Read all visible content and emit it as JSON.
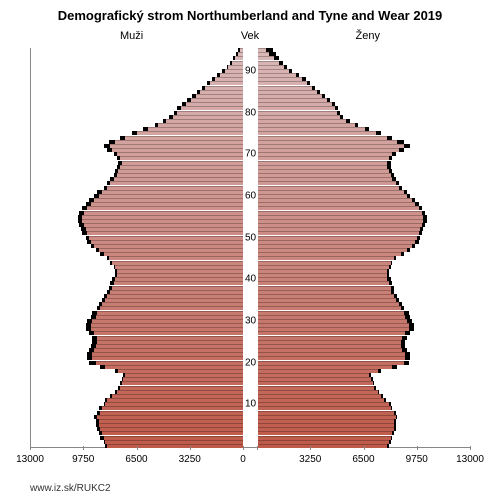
{
  "title": "Demografický strom Northumberland and Tyne and Wear 2019",
  "title_fontsize": 13,
  "labels": {
    "left": "Muži",
    "center": "Vek",
    "right": "Ženy"
  },
  "source": "www.iz.sk/RUKC2",
  "x_axis": {
    "max": 13000,
    "ticks_left": [
      13000,
      9750,
      6500,
      3250,
      0
    ],
    "ticks_right": [
      3250,
      6500,
      9750,
      13000
    ]
  },
  "y_axis": {
    "ticks": [
      10,
      20,
      30,
      40,
      50,
      60,
      70,
      80,
      90
    ],
    "max_age": 95,
    "label_fontsize": 10
  },
  "gradient": {
    "top_color": "#d9b8b8",
    "bottom_color": "#bf5a4a"
  },
  "background_color": "#ffffff",
  "outline_color": "#000000",
  "axis_color": "#888888",
  "bars": {
    "0": {
      "m_main": 8300,
      "m_back": 8400,
      "f_main": 7900,
      "f_back": 8000
    },
    "1": {
      "m_main": 8400,
      "m_back": 8500,
      "f_main": 8000,
      "f_back": 8100
    },
    "2": {
      "m_main": 8500,
      "m_back": 8700,
      "f_main": 8100,
      "f_back": 8200
    },
    "3": {
      "m_main": 8600,
      "m_back": 8800,
      "f_main": 8200,
      "f_back": 8300
    },
    "4": {
      "m_main": 8700,
      "m_back": 8900,
      "f_main": 8300,
      "f_back": 8400
    },
    "5": {
      "m_main": 8800,
      "m_back": 9000,
      "f_main": 8300,
      "f_back": 8400
    },
    "6": {
      "m_main": 8800,
      "m_back": 9000,
      "f_main": 8300,
      "f_back": 8400
    },
    "7": {
      "m_main": 8900,
      "m_back": 9100,
      "f_main": 8400,
      "f_back": 8500
    },
    "8": {
      "m_main": 8700,
      "m_back": 8900,
      "f_main": 8300,
      "f_back": 8400
    },
    "9": {
      "m_main": 8600,
      "m_back": 8800,
      "f_main": 8100,
      "f_back": 8200
    },
    "10": {
      "m_main": 8400,
      "m_back": 8500,
      "f_main": 8000,
      "f_back": 8100
    },
    "11": {
      "m_main": 8300,
      "m_back": 8400,
      "f_main": 7700,
      "f_back": 7800
    },
    "12": {
      "m_main": 8000,
      "m_back": 8100,
      "f_main": 7500,
      "f_back": 7600
    },
    "13": {
      "m_main": 7700,
      "m_back": 7800,
      "f_main": 7300,
      "f_back": 7400
    },
    "14": {
      "m_main": 7500,
      "m_back": 7600,
      "f_main": 7100,
      "f_back": 7200
    },
    "15": {
      "m_main": 7400,
      "m_back": 7500,
      "f_main": 7000,
      "f_back": 7100
    },
    "16": {
      "m_main": 7300,
      "m_back": 7400,
      "f_main": 6900,
      "f_back": 7000
    },
    "17": {
      "m_main": 7200,
      "m_back": 7300,
      "f_main": 6800,
      "f_back": 6900
    },
    "18": {
      "m_main": 7600,
      "m_back": 7800,
      "f_main": 7300,
      "f_back": 7500
    },
    "19": {
      "m_main": 8400,
      "m_back": 8700,
      "f_main": 8200,
      "f_back": 8500
    },
    "20": {
      "m_main": 9000,
      "m_back": 9400,
      "f_main": 8900,
      "f_back": 9200
    },
    "21": {
      "m_main": 9200,
      "m_back": 9500,
      "f_main": 9000,
      "f_back": 9300
    },
    "22": {
      "m_main": 9200,
      "m_back": 9500,
      "f_main": 9000,
      "f_back": 9300
    },
    "23": {
      "m_main": 9100,
      "m_back": 9400,
      "f_main": 8800,
      "f_back": 9100
    },
    "24": {
      "m_main": 9000,
      "m_back": 9300,
      "f_main": 8700,
      "f_back": 9000
    },
    "25": {
      "m_main": 8900,
      "m_back": 9200,
      "f_main": 8700,
      "f_back": 9000
    },
    "26": {
      "m_main": 8900,
      "m_back": 9200,
      "f_main": 8800,
      "f_back": 9100
    },
    "27": {
      "m_main": 9100,
      "m_back": 9400,
      "f_main": 9000,
      "f_back": 9300
    },
    "28": {
      "m_main": 9300,
      "m_back": 9600,
      "f_main": 9200,
      "f_back": 9500
    },
    "29": {
      "m_main": 9300,
      "m_back": 9600,
      "f_main": 9200,
      "f_back": 9500
    },
    "30": {
      "m_main": 9200,
      "m_back": 9500,
      "f_main": 9100,
      "f_back": 9400
    },
    "31": {
      "m_main": 9000,
      "m_back": 9300,
      "f_main": 9000,
      "f_back": 9300
    },
    "32": {
      "m_main": 8900,
      "m_back": 9200,
      "f_main": 8900,
      "f_back": 9200
    },
    "33": {
      "m_main": 8700,
      "m_back": 8900,
      "f_main": 8700,
      "f_back": 8900
    },
    "34": {
      "m_main": 8600,
      "m_back": 8800,
      "f_main": 8600,
      "f_back": 8800
    },
    "35": {
      "m_main": 8400,
      "m_back": 8600,
      "f_main": 8400,
      "f_back": 8600
    },
    "36": {
      "m_main": 8300,
      "m_back": 8500,
      "f_main": 8300,
      "f_back": 8500
    },
    "37": {
      "m_main": 8100,
      "m_back": 8300,
      "f_main": 8100,
      "f_back": 8300
    },
    "38": {
      "m_main": 8000,
      "m_back": 8200,
      "f_main": 8100,
      "f_back": 8300
    },
    "39": {
      "m_main": 7900,
      "m_back": 8100,
      "f_main": 8000,
      "f_back": 8200
    },
    "40": {
      "m_main": 7800,
      "m_back": 8000,
      "f_main": 7900,
      "f_back": 8100
    },
    "41": {
      "m_main": 7700,
      "m_back": 7800,
      "f_main": 7900,
      "f_back": 8000
    },
    "42": {
      "m_main": 7700,
      "m_back": 7800,
      "f_main": 7900,
      "f_back": 8000
    },
    "43": {
      "m_main": 7800,
      "m_back": 7900,
      "f_main": 8000,
      "f_back": 8100
    },
    "44": {
      "m_main": 8000,
      "m_back": 8100,
      "f_main": 8100,
      "f_back": 8200
    },
    "45": {
      "m_main": 8200,
      "m_back": 8300,
      "f_main": 8300,
      "f_back": 8400
    },
    "46": {
      "m_main": 8500,
      "m_back": 8700,
      "f_main": 8700,
      "f_back": 8900
    },
    "47": {
      "m_main": 8800,
      "m_back": 9000,
      "f_main": 9100,
      "f_back": 9300
    },
    "48": {
      "m_main": 9100,
      "m_back": 9300,
      "f_main": 9400,
      "f_back": 9600
    },
    "49": {
      "m_main": 9300,
      "m_back": 9500,
      "f_main": 9600,
      "f_back": 9800
    },
    "50": {
      "m_main": 9400,
      "m_back": 9600,
      "f_main": 9700,
      "f_back": 9900
    },
    "51": {
      "m_main": 9500,
      "m_back": 9800,
      "f_main": 9800,
      "f_back": 10000
    },
    "52": {
      "m_main": 9600,
      "m_back": 9900,
      "f_main": 9900,
      "f_back": 10100
    },
    "53": {
      "m_main": 9700,
      "m_back": 10000,
      "f_main": 10000,
      "f_back": 10200
    },
    "54": {
      "m_main": 9800,
      "m_back": 10100,
      "f_main": 10100,
      "f_back": 10300
    },
    "55": {
      "m_main": 9800,
      "m_back": 10100,
      "f_main": 10100,
      "f_back": 10300
    },
    "56": {
      "m_main": 9700,
      "m_back": 10000,
      "f_main": 10000,
      "f_back": 10200
    },
    "57": {
      "m_main": 9500,
      "m_back": 9800,
      "f_main": 9800,
      "f_back": 10000
    },
    "58": {
      "m_main": 9300,
      "m_back": 9600,
      "f_main": 9600,
      "f_back": 9800
    },
    "59": {
      "m_main": 9100,
      "m_back": 9400,
      "f_main": 9400,
      "f_back": 9600
    },
    "60": {
      "m_main": 8800,
      "m_back": 9100,
      "f_main": 9100,
      "f_back": 9300
    },
    "61": {
      "m_main": 8600,
      "m_back": 8900,
      "f_main": 8900,
      "f_back": 9100
    },
    "62": {
      "m_main": 8300,
      "m_back": 8500,
      "f_main": 8600,
      "f_back": 8800
    },
    "63": {
      "m_main": 8100,
      "m_back": 8300,
      "f_main": 8400,
      "f_back": 8600
    },
    "64": {
      "m_main": 7900,
      "m_back": 8100,
      "f_main": 8200,
      "f_back": 8400
    },
    "65": {
      "m_main": 7700,
      "m_back": 7900,
      "f_main": 8100,
      "f_back": 8300
    },
    "66": {
      "m_main": 7600,
      "m_back": 7800,
      "f_main": 8000,
      "f_back": 8200
    },
    "67": {
      "m_main": 7500,
      "m_back": 7700,
      "f_main": 7900,
      "f_back": 8100
    },
    "68": {
      "m_main": 7400,
      "m_back": 7600,
      "f_main": 7900,
      "f_back": 8100
    },
    "69": {
      "m_main": 7500,
      "m_back": 7700,
      "f_main": 8000,
      "f_back": 8200
    },
    "70": {
      "m_main": 7700,
      "m_back": 7900,
      "f_main": 8200,
      "f_back": 8400
    },
    "71": {
      "m_main": 8000,
      "m_back": 8300,
      "f_main": 8600,
      "f_back": 8900
    },
    "72": {
      "m_main": 8100,
      "m_back": 8500,
      "f_main": 8900,
      "f_back": 9300
    },
    "73": {
      "m_main": 7800,
      "m_back": 8200,
      "f_main": 8500,
      "f_back": 8900
    },
    "74": {
      "m_main": 7200,
      "m_back": 7500,
      "f_main": 7900,
      "f_back": 8200
    },
    "75": {
      "m_main": 6500,
      "m_back": 6800,
      "f_main": 7200,
      "f_back": 7500
    },
    "76": {
      "m_main": 5800,
      "m_back": 6100,
      "f_main": 6500,
      "f_back": 6800
    },
    "77": {
      "m_main": 5200,
      "m_back": 5400,
      "f_main": 5900,
      "f_back": 6100
    },
    "78": {
      "m_main": 4700,
      "m_back": 4900,
      "f_main": 5400,
      "f_back": 5600
    },
    "79": {
      "m_main": 4300,
      "m_back": 4500,
      "f_main": 5000,
      "f_back": 5200
    },
    "80": {
      "m_main": 4000,
      "m_back": 4200,
      "f_main": 4800,
      "f_back": 5000
    },
    "81": {
      "m_main": 3800,
      "m_back": 4000,
      "f_main": 4700,
      "f_back": 4900
    },
    "82": {
      "m_main": 3500,
      "m_back": 3700,
      "f_main": 4500,
      "f_back": 4700
    },
    "83": {
      "m_main": 3200,
      "m_back": 3400,
      "f_main": 4200,
      "f_back": 4400
    },
    "84": {
      "m_main": 2900,
      "m_back": 3100,
      "f_main": 3900,
      "f_back": 4100
    },
    "85": {
      "m_main": 2600,
      "m_back": 2800,
      "f_main": 3600,
      "f_back": 3800
    },
    "86": {
      "m_main": 2300,
      "m_back": 2500,
      "f_main": 3300,
      "f_back": 3500
    },
    "87": {
      "m_main": 2000,
      "m_back": 2200,
      "f_main": 3000,
      "f_back": 3200
    },
    "88": {
      "m_main": 1700,
      "m_back": 1900,
      "f_main": 2700,
      "f_back": 2900
    },
    "89": {
      "m_main": 1400,
      "m_back": 1600,
      "f_main": 2300,
      "f_back": 2500
    },
    "90": {
      "m_main": 1100,
      "m_back": 1300,
      "f_main": 1900,
      "f_back": 2100
    },
    "91": {
      "m_main": 900,
      "m_back": 1000,
      "f_main": 1600,
      "f_back": 1800
    },
    "92": {
      "m_main": 700,
      "m_back": 800,
      "f_main": 1300,
      "f_back": 1500
    },
    "93": {
      "m_main": 500,
      "m_back": 600,
      "f_main": 1000,
      "f_back": 1300
    },
    "94": {
      "m_main": 300,
      "m_back": 400,
      "f_main": 700,
      "f_back": 1100
    },
    "95": {
      "m_main": 200,
      "m_back": 300,
      "f_main": 500,
      "f_back": 900
    }
  }
}
